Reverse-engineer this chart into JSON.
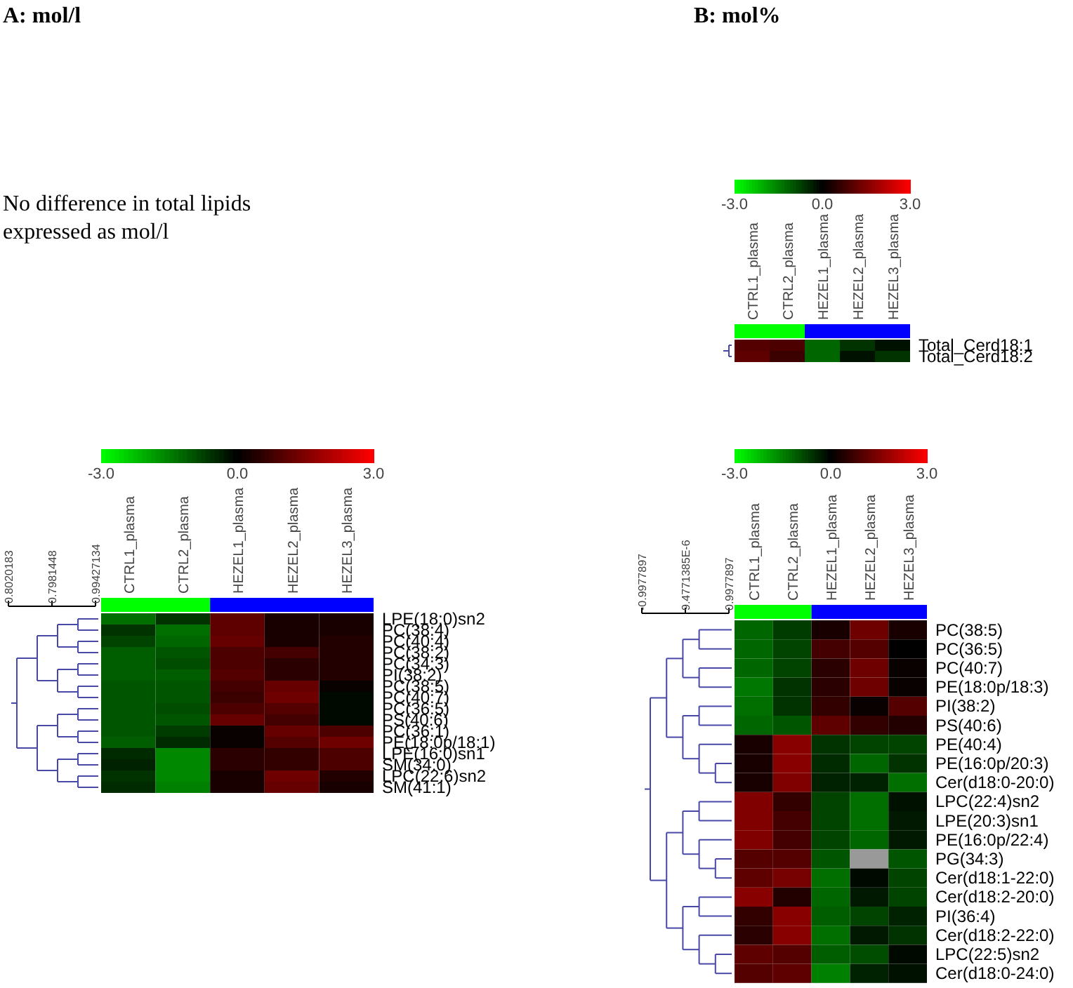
{
  "chart_data": [
    {
      "type": "heatmap",
      "title": "A: mol/l",
      "subtitle": "No difference in total lipids expressed as mol/l",
      "annotations": [
        "0.8020183",
        "0.7981448",
        "0.99427134"
      ],
      "categories": [
        "CTRL1_plasma",
        "CTRL2_plasma",
        "HEZEL1_plasma",
        "HEZEL2_plasma",
        "HEZEL3_plasma"
      ],
      "y_categories": [
        "LPE(18:0)sn2",
        "PC(38:4)",
        "PC(40:4)",
        "PC(38:2)",
        "PC(34:3)",
        "PI(38:2)",
        "PC(38:5)",
        "PC(40:7)",
        "PC(36:5)",
        "PS(40:6)",
        "PC(36:1)",
        "PE(18:0p/18:1)",
        "LPE(16:0)sn1",
        "SM(34:0)",
        "LPC(22:6)sn2",
        "SM(41:1)"
      ],
      "cells": [
        [
          -1.3,
          -0.6,
          1.1,
          0.3,
          0.3
        ],
        [
          -0.6,
          -1.3,
          1.1,
          0.3,
          0.3
        ],
        [
          -0.8,
          -1.2,
          1.2,
          0.3,
          0.4
        ],
        [
          -1.1,
          -1.0,
          0.9,
          0.8,
          0.4
        ],
        [
          -1.1,
          -0.9,
          0.9,
          0.5,
          0.4
        ],
        [
          -1.1,
          -1.1,
          1.0,
          0.5,
          0.4
        ],
        [
          -1.0,
          -1.0,
          0.8,
          1.2,
          0.1
        ],
        [
          -1.0,
          -1.0,
          0.7,
          1.3,
          -0.1
        ],
        [
          -1.0,
          -0.9,
          0.9,
          1.0,
          -0.1
        ],
        [
          -1.0,
          -1.0,
          1.2,
          0.8,
          -0.1
        ],
        [
          -1.0,
          -0.7,
          0.1,
          1.2,
          0.9
        ],
        [
          -1.1,
          -0.5,
          0.1,
          1.0,
          1.3
        ],
        [
          -0.5,
          -1.6,
          0.5,
          0.6,
          0.9
        ],
        [
          -0.4,
          -1.6,
          0.5,
          0.6,
          0.9
        ],
        [
          -0.6,
          -1.6,
          0.3,
          1.3,
          0.4
        ],
        [
          -0.5,
          -1.5,
          0.3,
          1.2,
          0.3
        ]
      ],
      "clim": [
        -3,
        3
      ],
      "cticks": [
        {
          "value": -3,
          "label": "-3.0"
        },
        {
          "value": 0,
          "label": "0.0"
        },
        {
          "value": 3,
          "label": "3.0"
        }
      ]
    },
    {
      "type": "heatmap",
      "title": "B: mol%",
      "categories": [
        "CTRL1_plasma",
        "CTRL2_plasma",
        "HEZEL1_plasma",
        "HEZEL2_plasma",
        "HEZEL3_plasma"
      ],
      "y_categories": [
        "Total_Cerd18:1",
        "Total_Cerd18:2"
      ],
      "cells": [
        [
          1.0,
          0.9,
          -1.2,
          -0.6,
          -0.2
        ],
        [
          1.1,
          0.7,
          -1.2,
          -0.2,
          -0.6
        ]
      ],
      "clim": [
        -3,
        3
      ],
      "cticks": [
        {
          "value": -3,
          "label": "-3.0"
        },
        {
          "value": 0,
          "label": "0.0"
        },
        {
          "value": 3,
          "label": "3.0"
        }
      ]
    },
    {
      "type": "heatmap",
      "annotations": [
        "-0.9977897",
        "9.4771385E-6",
        "0.9977897"
      ],
      "categories": [
        "CTRL1_plasma",
        "CTRL2_plasma",
        "HEZEL1_plasma",
        "HEZEL2_plasma",
        "HEZEL3_plasma"
      ],
      "y_categories": [
        "PC(38:5)",
        "PC(36:5)",
        "PC(40:7)",
        "PE(18:0p/18:3)",
        "PI(38:2)",
        "PS(40:6)",
        "PE(40:4)",
        "PE(16:0p/20:3)",
        "Cer(d18:0-20:0)",
        "LPC(22:4)sn2",
        "LPE(20:3)sn1",
        "PE(16:0p/22:4)",
        "PG(34:3)",
        "Cer(d18:1-22:0)",
        "Cer(d18:2-20:0)",
        "PI(36:4)",
        "Cer(d18:2-22:0)",
        "LPC(22:5)sn2",
        "Cer(d18:0-24:0)"
      ],
      "cells": [
        [
          -1.2,
          -0.7,
          0.3,
          1.3,
          0.3
        ],
        [
          -1.2,
          -0.8,
          0.8,
          1.0,
          0.0
        ],
        [
          -1.2,
          -0.8,
          0.5,
          1.3,
          0.1
        ],
        [
          -1.4,
          -0.6,
          0.5,
          1.3,
          0.1
        ],
        [
          -1.3,
          -0.6,
          0.6,
          0.1,
          1.0
        ],
        [
          -1.2,
          -1.0,
          1.1,
          0.6,
          0.4
        ],
        [
          0.3,
          1.6,
          -0.6,
          -0.8,
          -0.8
        ],
        [
          0.3,
          1.6,
          -0.5,
          -1.2,
          -0.6
        ],
        [
          0.3,
          1.5,
          -0.4,
          -0.4,
          -1.3
        ],
        [
          1.5,
          0.6,
          -0.8,
          -1.3,
          -0.2
        ],
        [
          1.5,
          0.8,
          -0.8,
          -1.3,
          -0.3
        ],
        [
          1.5,
          0.8,
          -0.8,
          -1.2,
          -0.3
        ],
        [
          1.0,
          1.0,
          -1.0,
          null,
          -1.0
        ],
        [
          1.1,
          1.4,
          -1.3,
          -0.1,
          -0.8
        ],
        [
          1.6,
          0.4,
          -1.2,
          -0.3,
          -0.8
        ],
        [
          0.6,
          1.6,
          -1.1,
          -0.8,
          -0.4
        ],
        [
          0.5,
          1.6,
          -1.3,
          -0.3,
          -0.6
        ],
        [
          1.1,
          1.0,
          -1.1,
          -0.9,
          -0.1
        ],
        [
          1.0,
          1.1,
          -1.5,
          -0.4,
          -0.2
        ]
      ],
      "clim": [
        -3,
        3
      ],
      "cticks": [
        {
          "value": -3,
          "label": "-3.0"
        },
        {
          "value": 0,
          "label": "0.0"
        },
        {
          "value": 3,
          "label": "3.0"
        }
      ]
    }
  ]
}
